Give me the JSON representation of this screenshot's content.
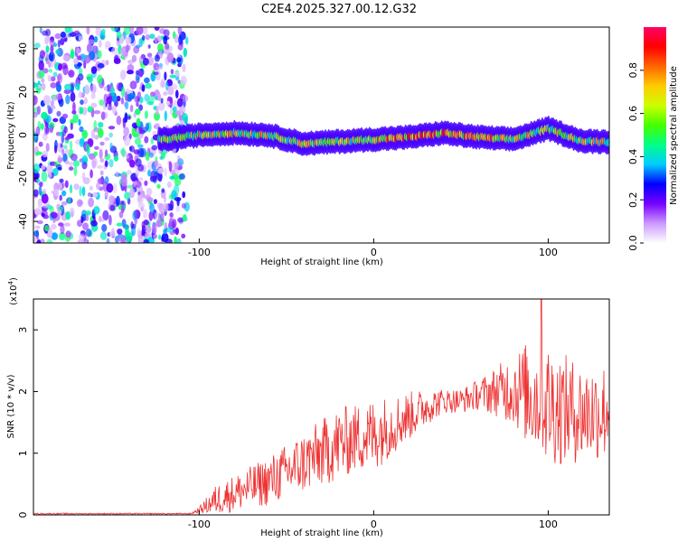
{
  "title": "C2E4.2025.327.00.12.G32",
  "chart_data": [
    {
      "type": "heatmap",
      "xlabel": "Height of straight line (km)",
      "ylabel": "Frequency (Hz)",
      "xlim": [
        -195,
        135
      ],
      "ylim": [
        -50,
        50
      ],
      "x_ticks": [
        -100,
        0,
        100
      ],
      "y_ticks": [
        -40,
        -20,
        0,
        20,
        40
      ],
      "noise_region": {
        "x_range": [
          -195,
          -107
        ],
        "amplitude_range": [
          0.0,
          0.45
        ]
      },
      "signal_band": {
        "x_start": -123,
        "center_freq_x": [
          -120,
          -100,
          -80,
          -60,
          -40,
          -20,
          0,
          20,
          40,
          60,
          80,
          100,
          120,
          135
        ],
        "center_freq_y": [
          -2,
          0,
          1,
          0,
          -4,
          -3,
          -2,
          -1,
          1,
          -1,
          -2,
          3,
          -3,
          -3
        ],
        "half_width_hz": 4,
        "peak_amplitude": 1.0
      },
      "colorbar": {
        "label": "Normalized spectral amplitude",
        "range": [
          0.0,
          1.0
        ],
        "ticks": [
          0.0,
          0.2,
          0.4,
          0.6,
          0.8
        ],
        "tick_labels": [
          "0.0",
          "0.2",
          "0.4",
          "0.6",
          "0.8"
        ],
        "colormap": [
          "#ffffff",
          "#cc99ff",
          "#7700ff",
          "#0000ff",
          "#00ccff",
          "#00ff88",
          "#44ff00",
          "#ccff00",
          "#ffcc00",
          "#ff6600",
          "#ff0000",
          "#ff0066"
        ]
      }
    },
    {
      "type": "line",
      "xlabel": "Height of straight line (km)",
      "ylabel": "SNR (10 * v/v)",
      "multiplier_label": "(x10",
      "multiplier_exp": "4",
      "multiplier_close": ")",
      "xlim": [
        -195,
        135
      ],
      "ylim": [
        0,
        3.5
      ],
      "x_ticks": [
        -100,
        0,
        100
      ],
      "y_ticks": [
        0,
        1,
        2,
        3
      ],
      "series": [
        {
          "name": "SNR",
          "color": "#ee3333",
          "envelope_x": [
            -195,
            -105,
            -100,
            -90,
            -80,
            -70,
            -60,
            -50,
            -40,
            -30,
            -20,
            -10,
            0,
            10,
            20,
            30,
            40,
            50,
            60,
            70,
            80,
            90,
            100,
            110,
            120,
            135
          ],
          "envelope_mean": [
            0.02,
            0.02,
            0.08,
            0.25,
            0.35,
            0.45,
            0.55,
            0.7,
            0.85,
            1.0,
            1.15,
            1.25,
            1.3,
            1.45,
            1.6,
            1.75,
            1.85,
            1.85,
            1.95,
            2.0,
            2.05,
            1.95,
            1.8,
            1.7,
            1.65,
            1.7
          ],
          "envelope_amp": [
            0.01,
            0.01,
            0.05,
            0.25,
            0.3,
            0.35,
            0.4,
            0.45,
            0.5,
            0.55,
            0.6,
            0.55,
            0.6,
            0.5,
            0.4,
            0.3,
            0.2,
            0.2,
            0.25,
            0.4,
            0.6,
            0.9,
            1.0,
            0.9,
            0.8,
            0.8
          ],
          "peak_value": 3.5,
          "peak_x": 96
        }
      ]
    }
  ]
}
